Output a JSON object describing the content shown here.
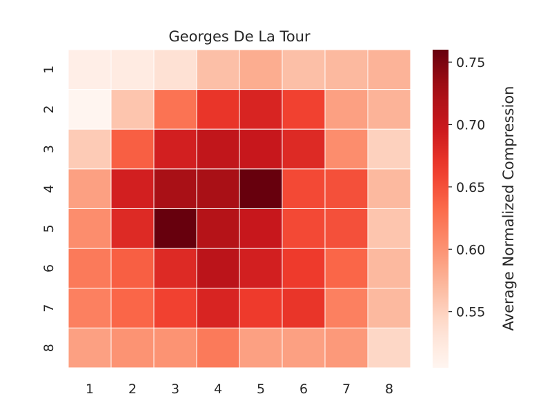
{
  "chart_data": {
    "type": "heatmap",
    "title": "Georges De La Tour",
    "xlabel": "",
    "ylabel": "",
    "x_categories": [
      "1",
      "2",
      "3",
      "4",
      "5",
      "6",
      "7",
      "8"
    ],
    "y_categories": [
      "1",
      "2",
      "3",
      "4",
      "5",
      "6",
      "7",
      "8"
    ],
    "values": [
      [
        0.515,
        0.52,
        0.535,
        0.565,
        0.58,
        0.565,
        0.57,
        0.575
      ],
      [
        0.505,
        0.56,
        0.625,
        0.67,
        0.685,
        0.66,
        0.59,
        0.575
      ],
      [
        0.555,
        0.64,
        0.69,
        0.705,
        0.7,
        0.68,
        0.605,
        0.55
      ],
      [
        0.59,
        0.69,
        0.725,
        0.725,
        0.76,
        0.655,
        0.65,
        0.57
      ],
      [
        0.605,
        0.68,
        0.76,
        0.715,
        0.7,
        0.655,
        0.65,
        0.56
      ],
      [
        0.62,
        0.64,
        0.68,
        0.71,
        0.69,
        0.665,
        0.635,
        0.57
      ],
      [
        0.615,
        0.635,
        0.66,
        0.685,
        0.665,
        0.67,
        0.615,
        0.57
      ],
      [
        0.59,
        0.6,
        0.6,
        0.62,
        0.59,
        0.59,
        0.595,
        0.545
      ]
    ],
    "colorbar": {
      "label": "Average Normalized Compression",
      "vmin": 0.505,
      "vmax": 0.76,
      "ticks": [
        "0.55",
        "0.60",
        "0.65",
        "0.70",
        "0.75"
      ],
      "colormap": "Reds"
    },
    "grid_lines": "white"
  }
}
